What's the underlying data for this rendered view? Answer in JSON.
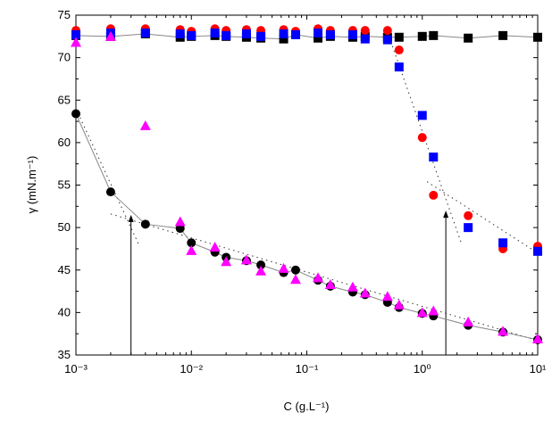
{
  "chart_data": {
    "type": "scatter",
    "xlabel": "C (g.L⁻¹)",
    "ylabel": "γ (mN.m⁻¹)",
    "xscale": "log",
    "xlim": [
      0.001,
      10
    ],
    "ylim": [
      35,
      75
    ],
    "grid": false,
    "xticks": [
      {
        "v": 0.001,
        "label": "10⁻³"
      },
      {
        "v": 0.01,
        "label": "10⁻²"
      },
      {
        "v": 0.1,
        "label": "10⁻¹"
      },
      {
        "v": 1,
        "label": "10⁰"
      },
      {
        "v": 10,
        "label": "10¹"
      }
    ],
    "yticks": [
      35,
      40,
      45,
      50,
      55,
      60,
      65,
      70,
      75
    ],
    "x": [
      0.001,
      0.002,
      0.004,
      0.008,
      0.01,
      0.016,
      0.02,
      0.03,
      0.04,
      0.063,
      0.08,
      0.125,
      0.16,
      0.25,
      0.32,
      0.5,
      0.63,
      1.0,
      1.25,
      2.5,
      5,
      10
    ],
    "series": [
      {
        "marker": "square",
        "color": "#000000",
        "line": true,
        "values": [
          72.6,
          72.5,
          72.8,
          72.4,
          72.5,
          72.6,
          72.5,
          72.4,
          72.3,
          72.2,
          72.7,
          72.3,
          72.5,
          72.4,
          72.5,
          72.4,
          72.4,
          72.5,
          72.6,
          72.3,
          72.6,
          72.4
        ]
      },
      {
        "marker": "circle",
        "color": "#ff0000",
        "line": false,
        "values": [
          73.2,
          73.4,
          73.4,
          73.3,
          73.1,
          73.4,
          73.2,
          73.3,
          73.2,
          73.3,
          73.1,
          73.4,
          73.2,
          73.2,
          73.2,
          73.2,
          70.9,
          60.6,
          53.8,
          51.4,
          47.5,
          47.8
        ]
      },
      {
        "marker": "square",
        "color": "#0000ff",
        "line": false,
        "values": [
          72.7,
          72.9,
          72.9,
          72.8,
          72.6,
          72.9,
          72.6,
          72.8,
          72.5,
          72.8,
          72.7,
          72.9,
          72.7,
          72.7,
          72.2,
          72.1,
          68.9,
          63.2,
          58.3,
          50.0,
          48.2,
          47.2
        ]
      },
      {
        "marker": "circle",
        "color": "#000000",
        "line": true,
        "values": [
          63.4,
          54.2,
          50.4,
          49.9,
          48.2,
          47.1,
          46.5,
          46.1,
          45.6,
          44.7,
          45.0,
          43.8,
          43.1,
          42.4,
          42.1,
          41.2,
          40.6,
          39.9,
          39.6,
          38.5,
          37.7,
          36.8
        ]
      },
      {
        "marker": "triangle",
        "color": "#ff00ff",
        "line": false,
        "values": [
          71.8,
          72.5,
          62.0,
          50.7,
          47.3,
          47.7,
          46.0,
          46.2,
          44.9,
          45.2,
          43.9,
          44.1,
          43.3,
          43.0,
          42.3,
          41.9,
          40.9,
          40.0,
          40.2,
          38.9,
          37.8,
          36.9
        ]
      }
    ],
    "fit_lines": [
      [
        [
          0.001,
          64
        ],
        [
          0.0035,
          48
        ]
      ],
      [
        [
          0.002,
          51.6
        ],
        [
          10,
          36.7
        ]
      ],
      [
        [
          0.5,
          73
        ],
        [
          2.2,
          48
        ]
      ],
      [
        [
          1.1,
          55.4
        ],
        [
          10,
          47
        ]
      ]
    ],
    "arrows": [
      {
        "x": 0.003,
        "from": 35,
        "to": 51.5
      },
      {
        "x": 1.6,
        "from": 35,
        "to": 52
      }
    ]
  }
}
